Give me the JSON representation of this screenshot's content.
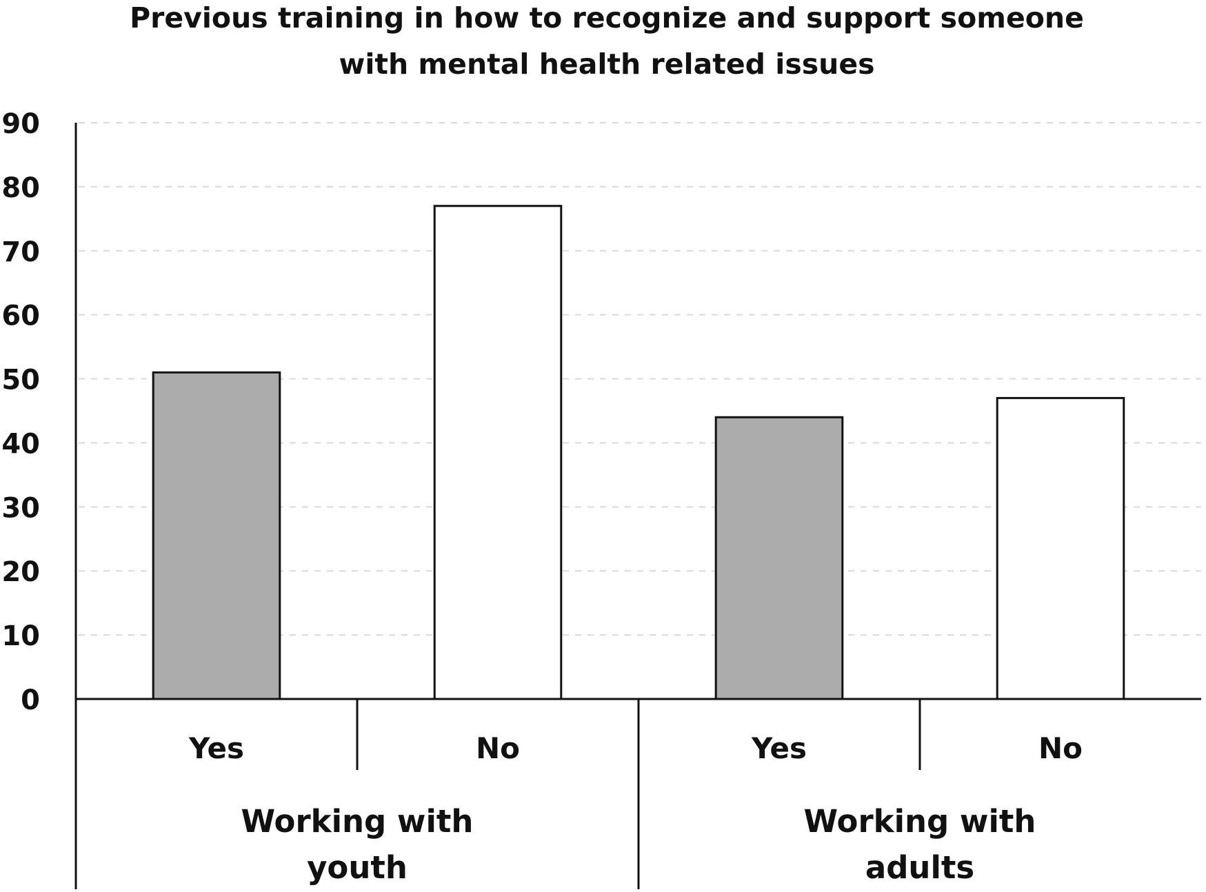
{
  "chart_data": {
    "type": "bar",
    "title": "Previous training in how to recognize and support someone with mental health related issues",
    "title_lines": [
      "Previous training in how to recognize and support someone",
      "with mental health related issues"
    ],
    "categories": [
      "Yes",
      "No",
      "Yes",
      "No"
    ],
    "groups": [
      {
        "label_lines": [
          "Working with",
          "youth"
        ],
        "bars": [
          {
            "category": "Yes",
            "value": 51,
            "color": "#acacac"
          },
          {
            "category": "No",
            "value": 77,
            "color": "#ffffff"
          }
        ]
      },
      {
        "label_lines": [
          "Working with",
          "adults"
        ],
        "bars": [
          {
            "category": "Yes",
            "value": 44,
            "color": "#acacac"
          },
          {
            "category": "No",
            "value": 47,
            "color": "#ffffff"
          }
        ]
      }
    ],
    "xlabel": "",
    "ylabel": "",
    "ylim": [
      0,
      90
    ],
    "yticks": [
      "0",
      "10",
      "20",
      "30",
      "40",
      "50",
      "60",
      "70",
      "80",
      "90"
    ],
    "grid": "horizontal dashed",
    "legend": "none"
  }
}
